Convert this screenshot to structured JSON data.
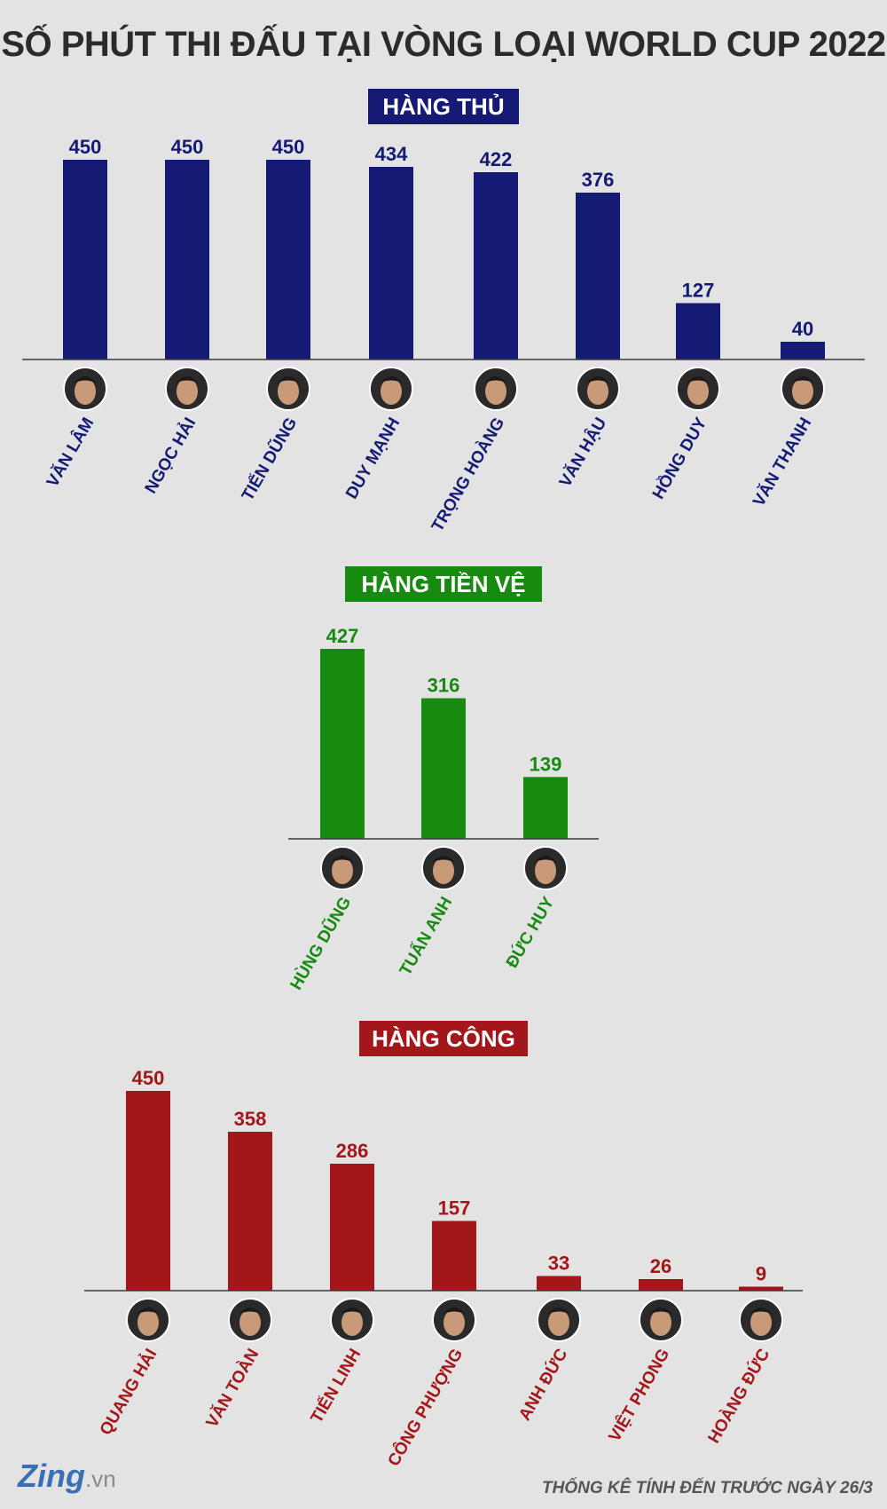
{
  "title": "SỐ PHÚT THI ĐẤU TẠI VÒNG LOẠI WORLD CUP 2022",
  "footnote": "THỐNG KÊ TÍNH ĐẾN TRƯỚC NGÀY 26/3",
  "logo": {
    "brand": "Zing",
    "suffix": ".vn"
  },
  "chart_data": [
    {
      "type": "bar",
      "title": "HÀNG THỦ",
      "color": "#151a75",
      "categories": [
        "VĂN LÂM",
        "NGỌC HẢI",
        "TIẾN DŨNG",
        "DUY MẠNH",
        "TRỌNG HOÀNG",
        "VĂN HẬU",
        "HỒNG DUY",
        "VĂN THANH"
      ],
      "values": [
        450,
        450,
        450,
        434,
        422,
        376,
        127,
        40
      ],
      "ylim": [
        0,
        450
      ]
    },
    {
      "type": "bar",
      "title": "HÀNG TIỀN VỆ",
      "color": "#178a10",
      "categories": [
        "HÙNG DŨNG",
        "TUẤN ANH",
        "ĐỨC HUY"
      ],
      "values": [
        427,
        316,
        139
      ],
      "ylim": [
        0,
        427
      ]
    },
    {
      "type": "bar",
      "title": "HÀNG CÔNG",
      "color": "#a3171b",
      "categories": [
        "QUANG HẢI",
        "VĂN TOÀN",
        "TIẾN LINH",
        "CÔNG PHƯỢNG",
        "ANH ĐỨC",
        "VIỆT PHONG",
        "HOÀNG ĐỨC"
      ],
      "values": [
        450,
        358,
        286,
        157,
        33,
        26,
        9
      ],
      "ylim": [
        0,
        450
      ]
    }
  ]
}
